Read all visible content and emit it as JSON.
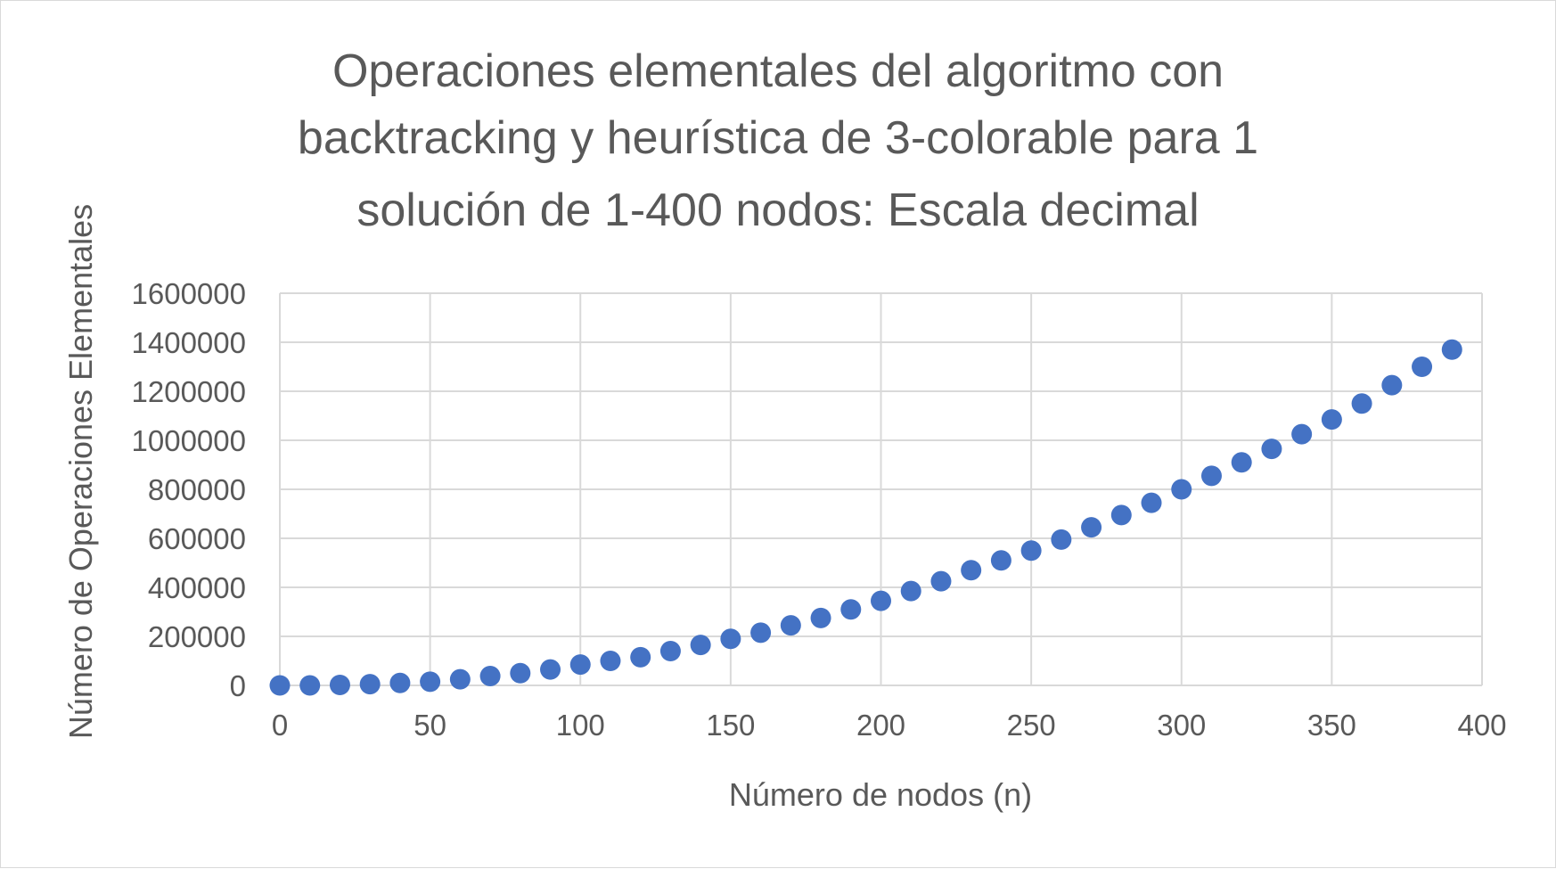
{
  "chart_data": {
    "type": "scatter",
    "title_lines": [
      "Operaciones elementales del algoritmo con",
      "backtracking y heurística de 3-colorable para 1",
      "solución de 1-400 nodos: Escala decimal"
    ],
    "xlabel": "Número de nodos (n)",
    "ylabel": "Número de Operaciones Elementales",
    "xlim": [
      0,
      400
    ],
    "ylim": [
      0,
      1600000
    ],
    "x_ticks": [
      "0",
      "50",
      "100",
      "150",
      "200",
      "250",
      "300",
      "350",
      "400"
    ],
    "y_ticks": [
      "0",
      "200000",
      "400000",
      "600000",
      "800000",
      "1000000",
      "1200000",
      "1400000",
      "1600000"
    ],
    "x_tick_values": [
      0,
      50,
      100,
      150,
      200,
      250,
      300,
      350,
      400
    ],
    "y_tick_values": [
      0,
      200000,
      400000,
      600000,
      800000,
      1000000,
      1200000,
      1400000,
      1600000
    ],
    "grid": true,
    "marker_color": "#4472C4",
    "series": [
      {
        "x": [
          0,
          10,
          20,
          30,
          40,
          50,
          60,
          70,
          80,
          90,
          100,
          110,
          120,
          130,
          140,
          150,
          160,
          170,
          180,
          190,
          200,
          210,
          220,
          230,
          240,
          250,
          260,
          270,
          280,
          290,
          300,
          310,
          320,
          330,
          340,
          350,
          360,
          370,
          380,
          390
        ],
        "y": [
          0,
          0,
          2000,
          5000,
          10000,
          15000,
          25000,
          38000,
          50000,
          65000,
          85000,
          100000,
          115000,
          140000,
          165000,
          190000,
          215000,
          245000,
          275000,
          310000,
          345000,
          385000,
          425000,
          470000,
          510000,
          550000,
          595000,
          645000,
          695000,
          745000,
          800000,
          855000,
          910000,
          965000,
          1025000,
          1085000,
          1150000,
          1225000,
          1300000,
          1370000
        ]
      }
    ]
  }
}
